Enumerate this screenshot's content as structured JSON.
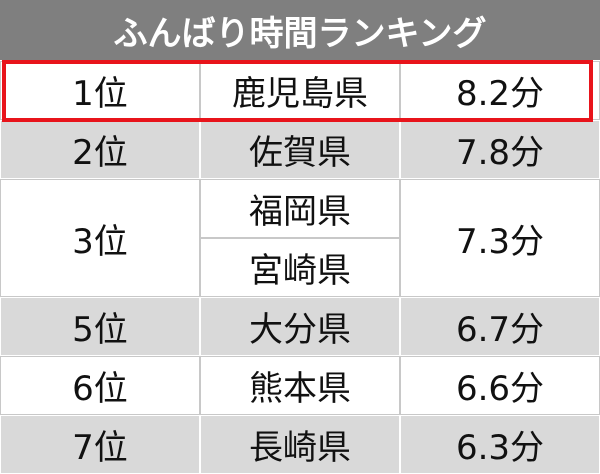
{
  "header": {
    "title": "ふんばり時間ランキング"
  },
  "rows": [
    {
      "rank": "1位",
      "prefectures": [
        "鹿児島県"
      ],
      "time": "8.2分"
    },
    {
      "rank": "2位",
      "prefectures": [
        "佐賀県"
      ],
      "time": "7.8分"
    },
    {
      "rank": "3位",
      "prefectures": [
        "福岡県",
        "宮崎県"
      ],
      "time": "7.3分"
    },
    {
      "rank": "5位",
      "prefectures": [
        "大分県"
      ],
      "time": "6.7分"
    },
    {
      "rank": "6位",
      "prefectures": [
        "熊本県"
      ],
      "time": "6.6分"
    },
    {
      "rank": "7位",
      "prefectures": [
        "長崎県"
      ],
      "time": "6.3分"
    }
  ]
}
